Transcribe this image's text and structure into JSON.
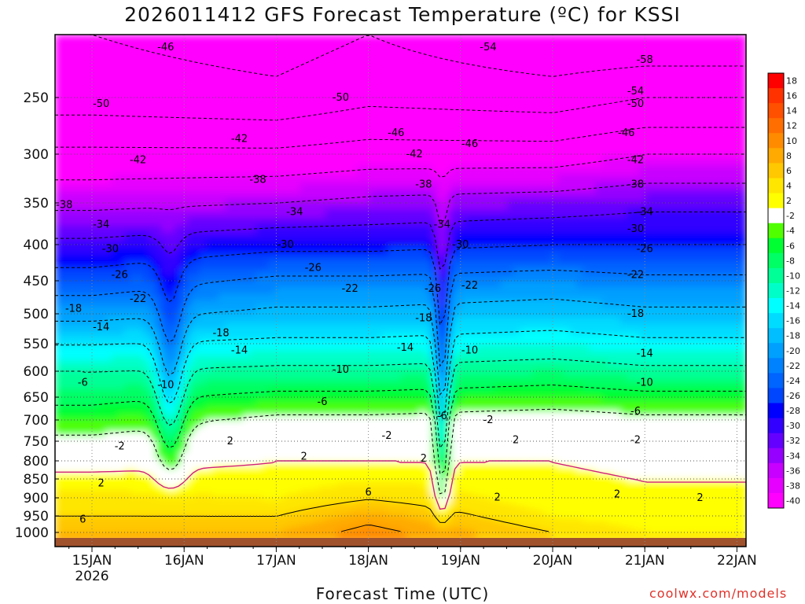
{
  "title": "2026011412 GFS Forecast Temperature (ºC) for KSSI",
  "credit": "coolwx.com/models",
  "chart_data": {
    "type": "heatmap",
    "title": "2026011412 GFS Forecast Temperature (ºC) for KSSI",
    "xlabel": "Forecast Time (UTC)",
    "ylabel": "",
    "x_ticks": [
      "15JAN",
      "16JAN",
      "17JAN",
      "18JAN",
      "19JAN",
      "20JAN",
      "21JAN",
      "22JAN"
    ],
    "x_subtick": "2026",
    "xlim": [
      "2026-01-14T12",
      "2026-01-22T00"
    ],
    "y_ticks": [
      250,
      300,
      350,
      400,
      450,
      500,
      550,
      600,
      650,
      700,
      750,
      800,
      850,
      900,
      950,
      1000
    ],
    "ylim": [
      1030,
      200
    ],
    "grid": true,
    "colorbar": {
      "labels": [
        18,
        16,
        14,
        12,
        10,
        8,
        6,
        4,
        2,
        -2,
        -4,
        -6,
        -8,
        -10,
        -12,
        -14,
        -16,
        -18,
        -20,
        -22,
        -24,
        -26,
        -28,
        -30,
        -32,
        -34,
        -36,
        -38,
        -40
      ],
      "colors": [
        "#ff0000",
        "#ff3200",
        "#ff5000",
        "#ff6e00",
        "#ff8c00",
        "#ffaa00",
        "#ffc800",
        "#ffe600",
        "#ffff00",
        "#ffffff",
        "#50ff00",
        "#00ff32",
        "#00ff64",
        "#00ff96",
        "#00ffc8",
        "#00ffff",
        "#00dcff",
        "#00beff",
        "#00a0ff",
        "#0082ff",
        "#0064ff",
        "#0046ff",
        "#0000ff",
        "#3200ff",
        "#6400ff",
        "#9600ff",
        "#c800ff",
        "#e600ff",
        "#ff00ff"
      ]
    },
    "isotherms_by_pressure": {
      "pressure": [
        1000,
        950,
        900,
        850,
        800,
        750,
        700,
        650,
        600,
        550,
        500,
        450,
        400,
        350,
        300,
        250,
        200
      ],
      "15JAN": [
        8,
        6,
        5,
        3,
        1,
        -1,
        -4,
        -7,
        -10,
        -14,
        -19,
        -24,
        -29,
        -35,
        -41,
        -48,
        -50
      ],
      "17JAN": [
        8,
        6,
        4,
        3,
        2,
        1,
        -1,
        -5,
        -9,
        -13,
        -17,
        -21,
        -27,
        -34,
        -41,
        -49,
        -52
      ],
      "18JAN": [
        11,
        9,
        6,
        4,
        2,
        1,
        -1,
        -5,
        -9,
        -13,
        -17,
        -21,
        -27,
        -33,
        -40,
        -47,
        -50
      ],
      "20JAN": [
        6,
        4,
        3,
        3,
        2,
        1,
        0,
        -4,
        -8,
        -12,
        -16,
        -20,
        -26,
        -32,
        -40,
        -48,
        -54
      ],
      "21JAN": [
        4,
        3,
        2,
        2,
        1,
        0,
        -1,
        -5,
        -9,
        -13,
        -17,
        -21,
        -26,
        -31,
        -38,
        -46,
        -54
      ]
    },
    "contour_labels": [
      {
        "text": "-46",
        "x": "15.8",
        "p": 200
      },
      {
        "text": "-50",
        "x": "15.1",
        "p": 245
      },
      {
        "text": "-42",
        "x": "15.5",
        "p": 305
      },
      {
        "text": "-38",
        "x": "14.7",
        "p": 352
      },
      {
        "text": "-34",
        "x": "15.1",
        "p": 375
      },
      {
        "text": "-30",
        "x": "15.2",
        "p": 405
      },
      {
        "text": "-26",
        "x": "15.3",
        "p": 440
      },
      {
        "text": "-22",
        "x": "15.5",
        "p": 475
      },
      {
        "text": "-18",
        "x": "14.8",
        "p": 490
      },
      {
        "text": "-14",
        "x": "15.1",
        "p": 520
      },
      {
        "text": "-10",
        "x": "15.8",
        "p": 625
      },
      {
        "text": "-6",
        "x": "14.9",
        "p": 620
      },
      {
        "text": "-2",
        "x": "15.3",
        "p": 760
      },
      {
        "text": "2",
        "x": "15.1",
        "p": 855
      },
      {
        "text": "6",
        "x": "14.9",
        "p": 960
      },
      {
        "text": "-42",
        "x": "16.6",
        "p": 285
      },
      {
        "text": "-38",
        "x": "16.8",
        "p": 325
      },
      {
        "text": "-34",
        "x": "17.2",
        "p": 360
      },
      {
        "text": "-30",
        "x": "17.1",
        "p": 400
      },
      {
        "text": "-26",
        "x": "17.4",
        "p": 430
      },
      {
        "text": "-22",
        "x": "17.8",
        "p": 460
      },
      {
        "text": "-18",
        "x": "16.4",
        "p": 530
      },
      {
        "text": "-14",
        "x": "16.6",
        "p": 560
      },
      {
        "text": "-10",
        "x": "17.7",
        "p": 595
      },
      {
        "text": "-6",
        "x": "17.5",
        "p": 660
      },
      {
        "text": "-50",
        "x": "17.7",
        "p": 250
      },
      {
        "text": "-46",
        "x": "18.3",
        "p": 280
      },
      {
        "text": "-42",
        "x": "18.5",
        "p": 300
      },
      {
        "text": "-38",
        "x": "18.6",
        "p": 330
      },
      {
        "text": "-34",
        "x": "18.8",
        "p": 375
      },
      {
        "text": "-30",
        "x": "19.0",
        "p": 400
      },
      {
        "text": "-26",
        "x": "18.7",
        "p": 460
      },
      {
        "text": "-22",
        "x": "19.1",
        "p": 455
      },
      {
        "text": "-18",
        "x": "18.6",
        "p": 505
      },
      {
        "text": "-14",
        "x": "18.4",
        "p": 555
      },
      {
        "text": "-10",
        "x": "19.1",
        "p": 560
      },
      {
        "text": "-6",
        "x": "18.8",
        "p": 690
      },
      {
        "text": "-2",
        "x": "18.2",
        "p": 735
      },
      {
        "text": "2",
        "x": "17.3",
        "p": 785
      },
      {
        "text": "2",
        "x": "16.5",
        "p": 750
      },
      {
        "text": "2",
        "x": "18.6",
        "p": 790
      },
      {
        "text": "6",
        "x": "18.0",
        "p": 880
      },
      {
        "text": "-54",
        "x": "19.3",
        "p": 200
      },
      {
        "text": "-46",
        "x": "19.1",
        "p": 290
      },
      {
        "text": "-2",
        "x": "19.3",
        "p": 700
      },
      {
        "text": "2",
        "x": "19.6",
        "p": 745
      },
      {
        "text": "2",
        "x": "19.4",
        "p": 895
      },
      {
        "text": "-58",
        "x": "21.0",
        "p": 210
      },
      {
        "text": "-54",
        "x": "20.9",
        "p": 235
      },
      {
        "text": "-50",
        "x": "20.9",
        "p": 255
      },
      {
        "text": "-46",
        "x": "20.8",
        "p": 280
      },
      {
        "text": "-42",
        "x": "20.9",
        "p": 305
      },
      {
        "text": "-38",
        "x": "20.9",
        "p": 330
      },
      {
        "text": "-34",
        "x": "21.0",
        "p": 360
      },
      {
        "text": "-30",
        "x": "20.9",
        "p": 380
      },
      {
        "text": "-26",
        "x": "21.0",
        "p": 405
      },
      {
        "text": "-22",
        "x": "20.9",
        "p": 440
      },
      {
        "text": "-18",
        "x": "20.9",
        "p": 500
      },
      {
        "text": "-14",
        "x": "21.0",
        "p": 565
      },
      {
        "text": "-10",
        "x": "21.0",
        "p": 620
      },
      {
        "text": "-6",
        "x": "20.9",
        "p": 680
      },
      {
        "text": "-2",
        "x": "20.9",
        "p": 745
      },
      {
        "text": "2",
        "x": "20.7",
        "p": 885
      },
      {
        "text": "2",
        "x": "21.6",
        "p": 900
      }
    ]
  }
}
